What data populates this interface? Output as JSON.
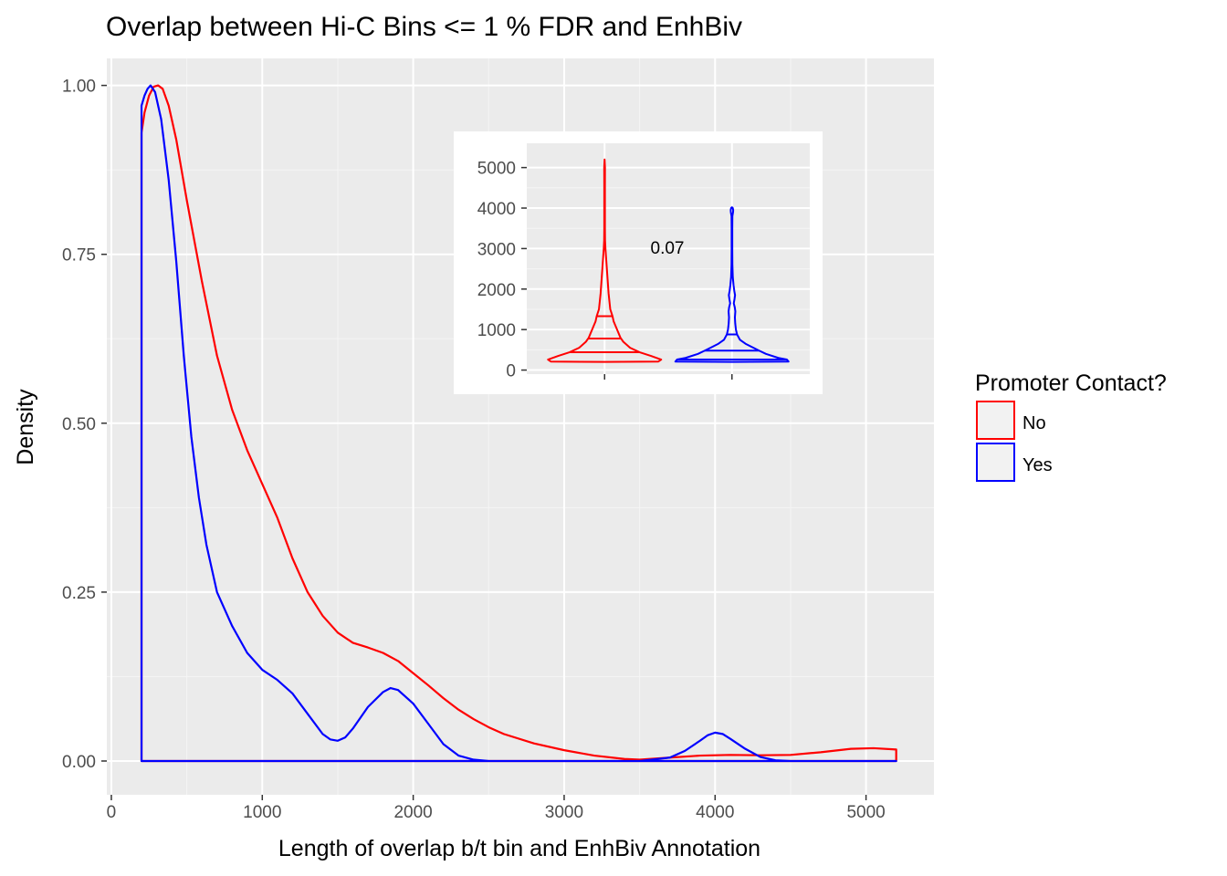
{
  "chart_data": [
    {
      "type": "line",
      "title": "Overlap between Hi-C Bins <= 1 % FDR and EnhBiv",
      "xlabel": "Length of overlap b/t bin and EnhBiv Annotation",
      "ylabel": "Density",
      "xlim": [
        -30,
        5450
      ],
      "ylim": [
        -0.05,
        1.04
      ],
      "x_ticks": [
        0,
        1000,
        2000,
        3000,
        4000,
        5000
      ],
      "x_tick_labels": [
        "0",
        "1000",
        "2000",
        "3000",
        "4000",
        "5000"
      ],
      "y_ticks": [
        0,
        0.25,
        0.5,
        0.75,
        1.0
      ],
      "y_tick_labels": [
        "0.00",
        "0.25",
        "0.50",
        "0.75",
        "1.00"
      ],
      "grid": true,
      "legend": {
        "title": "Promoter Contact?",
        "position": "right",
        "entries": [
          {
            "label": "No",
            "color": "#ff0000"
          },
          {
            "label": "Yes",
            "color": "#0000ff"
          }
        ]
      },
      "series": [
        {
          "name": "No",
          "color": "#ff0000",
          "points": [
            [
              200,
              0.93
            ],
            [
              220,
              0.96
            ],
            [
              250,
              0.985
            ],
            [
              280,
              0.998
            ],
            [
              310,
              1.0
            ],
            [
              340,
              0.995
            ],
            [
              380,
              0.97
            ],
            [
              430,
              0.92
            ],
            [
              500,
              0.83
            ],
            [
              600,
              0.71
            ],
            [
              700,
              0.6
            ],
            [
              800,
              0.52
            ],
            [
              900,
              0.46
            ],
            [
              1000,
              0.41
            ],
            [
              1100,
              0.36
            ],
            [
              1200,
              0.3
            ],
            [
              1300,
              0.25
            ],
            [
              1400,
              0.215
            ],
            [
              1500,
              0.19
            ],
            [
              1600,
              0.175
            ],
            [
              1700,
              0.168
            ],
            [
              1800,
              0.16
            ],
            [
              1900,
              0.148
            ],
            [
              2000,
              0.13
            ],
            [
              2100,
              0.112
            ],
            [
              2200,
              0.093
            ],
            [
              2300,
              0.076
            ],
            [
              2400,
              0.062
            ],
            [
              2500,
              0.05
            ],
            [
              2600,
              0.04
            ],
            [
              2800,
              0.026
            ],
            [
              3000,
              0.016
            ],
            [
              3200,
              0.008
            ],
            [
              3400,
              0.003
            ],
            [
              3500,
              0.002
            ],
            [
              3700,
              0.005
            ],
            [
              3900,
              0.008
            ],
            [
              4100,
              0.009
            ],
            [
              4300,
              0.0085
            ],
            [
              4500,
              0.009
            ],
            [
              4700,
              0.013
            ],
            [
              4900,
              0.018
            ],
            [
              5050,
              0.019
            ],
            [
              5200,
              0.017
            ]
          ]
        },
        {
          "name": "Yes",
          "color": "#0000ff",
          "points": [
            [
              200,
              0.97
            ],
            [
              220,
              0.985
            ],
            [
              240,
              0.995
            ],
            [
              260,
              1.0
            ],
            [
              290,
              0.99
            ],
            [
              330,
              0.95
            ],
            [
              380,
              0.86
            ],
            [
              430,
              0.74
            ],
            [
              480,
              0.6
            ],
            [
              530,
              0.48
            ],
            [
              580,
              0.39
            ],
            [
              630,
              0.32
            ],
            [
              700,
              0.25
            ],
            [
              800,
              0.2
            ],
            [
              900,
              0.16
            ],
            [
              1000,
              0.135
            ],
            [
              1100,
              0.12
            ],
            [
              1200,
              0.1
            ],
            [
              1300,
              0.07
            ],
            [
              1400,
              0.04
            ],
            [
              1450,
              0.032
            ],
            [
              1500,
              0.03
            ],
            [
              1550,
              0.035
            ],
            [
              1600,
              0.048
            ],
            [
              1700,
              0.08
            ],
            [
              1800,
              0.102
            ],
            [
              1850,
              0.108
            ],
            [
              1900,
              0.105
            ],
            [
              2000,
              0.085
            ],
            [
              2100,
              0.055
            ],
            [
              2200,
              0.025
            ],
            [
              2300,
              0.008
            ],
            [
              2400,
              0.002
            ],
            [
              2500,
              0.0
            ],
            [
              3000,
              0.0
            ],
            [
              3500,
              0.0
            ],
            [
              3700,
              0.005
            ],
            [
              3800,
              0.015
            ],
            [
              3900,
              0.03
            ],
            [
              3950,
              0.038
            ],
            [
              4000,
              0.042
            ],
            [
              4050,
              0.04
            ],
            [
              4100,
              0.033
            ],
            [
              4200,
              0.018
            ],
            [
              4300,
              0.006
            ],
            [
              4400,
              0.001
            ],
            [
              4500,
              0.0
            ],
            [
              5200,
              0.0
            ]
          ]
        }
      ]
    },
    {
      "type": "violin",
      "ylim": [
        -100,
        5600
      ],
      "y_ticks": [
        0,
        1000,
        2000,
        3000,
        4000,
        5000
      ],
      "y_tick_labels": [
        "0",
        "1000",
        "2000",
        "3000",
        "4000",
        "5000"
      ],
      "annotation": "0.07",
      "groups": [
        {
          "name": "No",
          "color": "#ff0000",
          "quantiles": [
            440,
            780,
            1330
          ],
          "profile": [
            [
              200,
              0.0
            ],
            [
              210,
              0.95
            ],
            [
              260,
              1.0
            ],
            [
              350,
              0.82
            ],
            [
              440,
              0.62
            ],
            [
              550,
              0.45
            ],
            [
              700,
              0.33
            ],
            [
              800,
              0.28
            ],
            [
              1000,
              0.22
            ],
            [
              1200,
              0.16
            ],
            [
              1330,
              0.14
            ],
            [
              1500,
              0.1
            ],
            [
              1700,
              0.085
            ],
            [
              1900,
              0.07
            ],
            [
              2100,
              0.06
            ],
            [
              2400,
              0.045
            ],
            [
              2700,
              0.03
            ],
            [
              3000,
              0.015
            ],
            [
              3200,
              0.008
            ],
            [
              3500,
              0.006
            ],
            [
              4000,
              0.006
            ],
            [
              4500,
              0.006
            ],
            [
              5000,
              0.007
            ],
            [
              5200,
              0.0
            ]
          ]
        },
        {
          "name": "Yes",
          "color": "#0000ff",
          "quantiles": [
            260,
            480,
            880
          ],
          "profile": [
            [
              200,
              0.0
            ],
            [
              210,
              1.0
            ],
            [
              260,
              0.97
            ],
            [
              300,
              0.82
            ],
            [
              400,
              0.6
            ],
            [
              480,
              0.48
            ],
            [
              550,
              0.38
            ],
            [
              650,
              0.24
            ],
            [
              750,
              0.14
            ],
            [
              880,
              0.09
            ],
            [
              1000,
              0.07
            ],
            [
              1150,
              0.058
            ],
            [
              1300,
              0.052
            ],
            [
              1450,
              0.06
            ],
            [
              1550,
              0.05
            ],
            [
              1650,
              0.032
            ],
            [
              1750,
              0.045
            ],
            [
              1850,
              0.055
            ],
            [
              1950,
              0.042
            ],
            [
              2100,
              0.028
            ],
            [
              2300,
              0.015
            ],
            [
              2600,
              0.008
            ],
            [
              3000,
              0.006
            ],
            [
              3500,
              0.006
            ],
            [
              3800,
              0.008
            ],
            [
              3900,
              0.02
            ],
            [
              3950,
              0.022
            ],
            [
              4000,
              0.015
            ],
            [
              4020,
              0.0
            ]
          ]
        }
      ]
    }
  ]
}
